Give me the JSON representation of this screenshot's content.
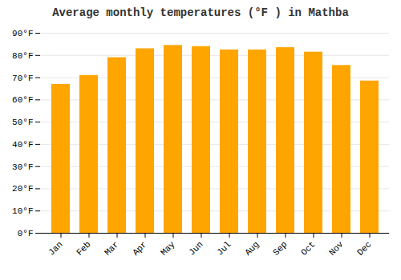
{
  "chart_data": {
    "type": "bar",
    "title": "Average monthly temperatures (°F ) in Mathba",
    "categories": [
      "Jan",
      "Feb",
      "Mar",
      "Apr",
      "May",
      "Jun",
      "Jul",
      "Aug",
      "Sep",
      "Oct",
      "Nov",
      "Dec"
    ],
    "values": [
      67,
      71,
      79,
      83,
      84.5,
      84,
      82.5,
      82.5,
      83.5,
      81.5,
      75.5,
      68.5
    ],
    "color": "#FFA500",
    "ylim": [
      0,
      90
    ],
    "yticks": [
      {
        "value": 0,
        "label": "0°F"
      },
      {
        "value": 10,
        "label": "10°F"
      },
      {
        "value": 20,
        "label": "20°F"
      },
      {
        "value": 30,
        "label": "30°F"
      },
      {
        "value": 40,
        "label": "40°F"
      },
      {
        "value": 50,
        "label": "50°F"
      },
      {
        "value": 60,
        "label": "60°F"
      },
      {
        "value": 70,
        "label": "70°F"
      },
      {
        "value": 80,
        "label": "80°F"
      },
      {
        "value": 90,
        "label": "90°F"
      }
    ],
    "grid": true
  }
}
